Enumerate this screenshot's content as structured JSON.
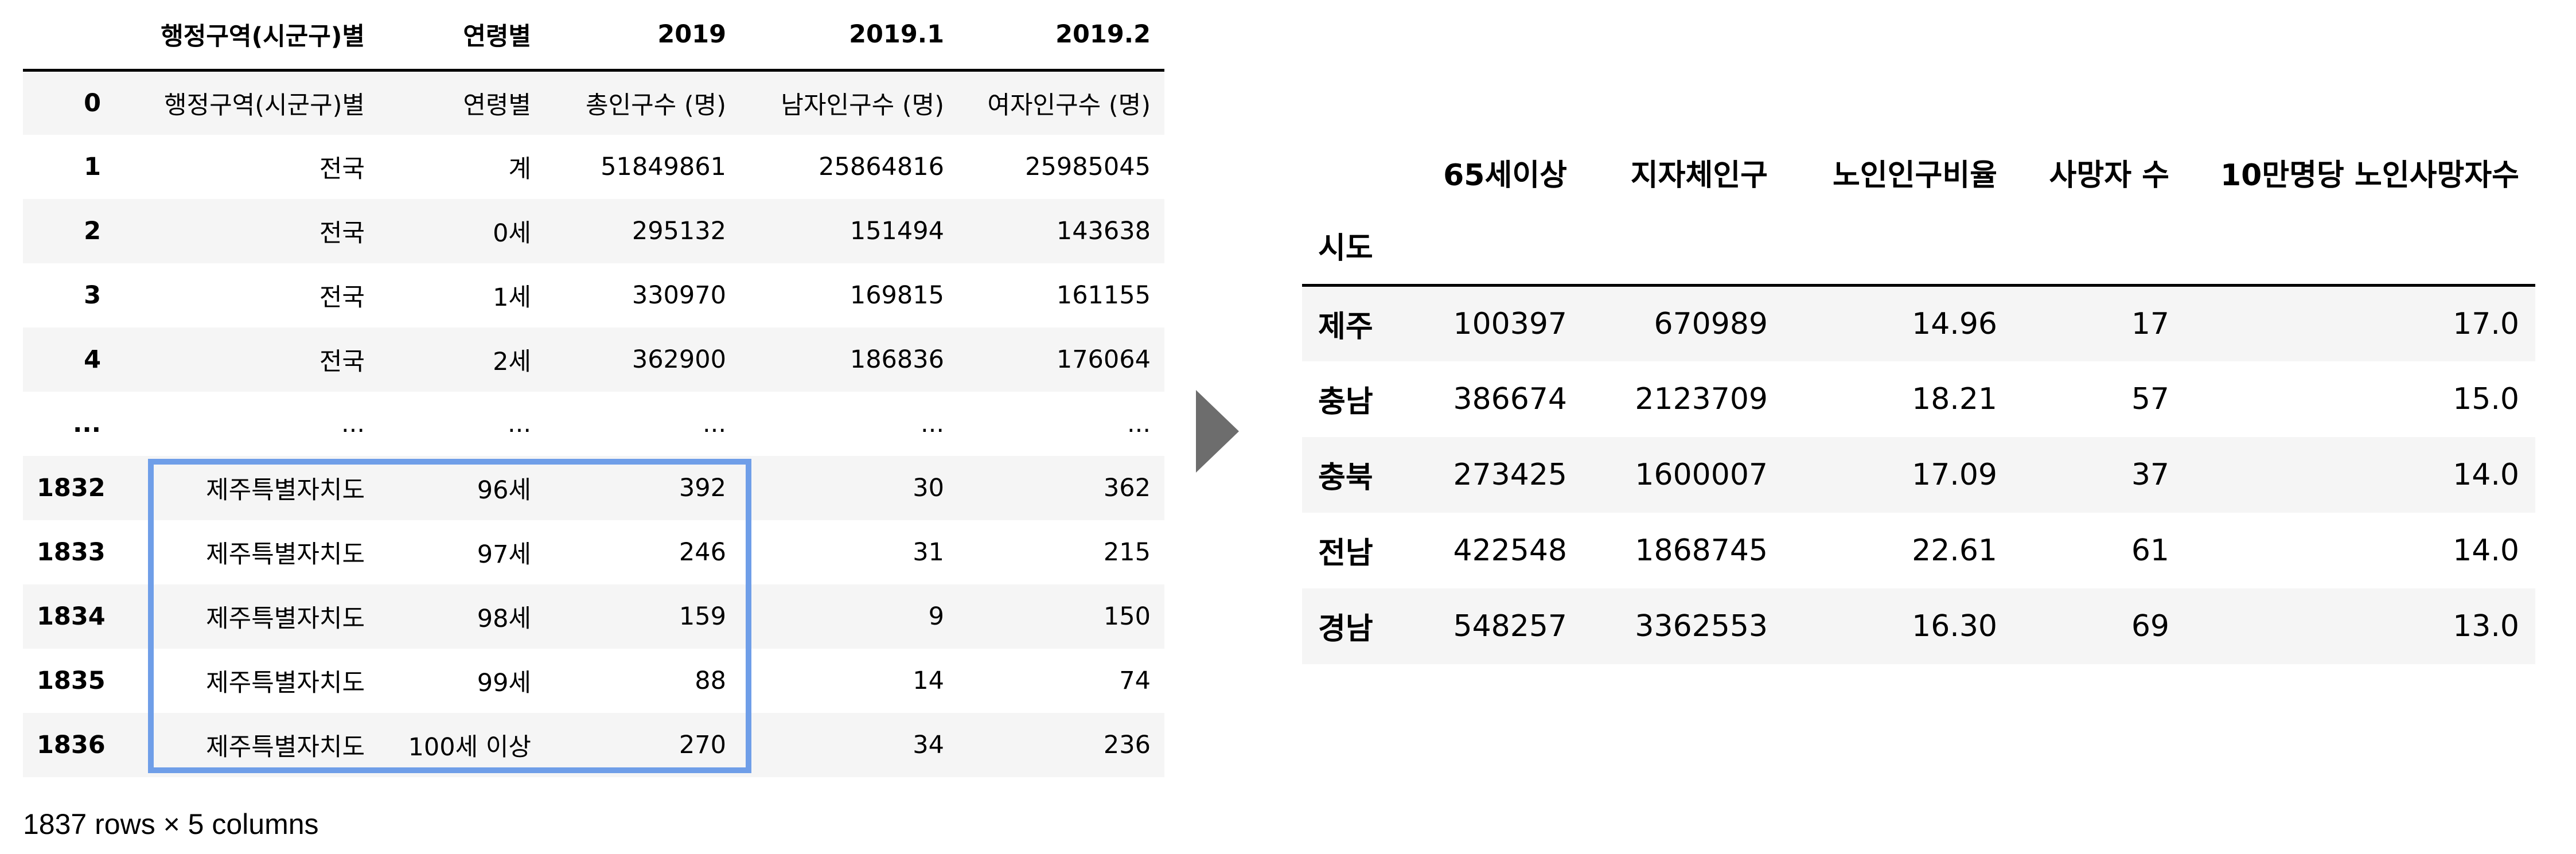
{
  "left_table": {
    "columns": [
      "",
      "행정구역(시군구)별",
      "연령별",
      "2019",
      "2019.1",
      "2019.2"
    ],
    "rows": [
      [
        "0",
        "행정구역(시군구)별",
        "연령별",
        "총인구수 (명)",
        "남자인구수 (명)",
        "여자인구수 (명)"
      ],
      [
        "1",
        "전국",
        "계",
        "51849861",
        "25864816",
        "25985045"
      ],
      [
        "2",
        "전국",
        "0세",
        "295132",
        "151494",
        "143638"
      ],
      [
        "3",
        "전국",
        "1세",
        "330970",
        "169815",
        "161155"
      ],
      [
        "4",
        "전국",
        "2세",
        "362900",
        "186836",
        "176064"
      ],
      [
        "...",
        "...",
        "...",
        "...",
        "...",
        "..."
      ],
      [
        "1832",
        "제주특별자치도",
        "96세",
        "392",
        "30",
        "362"
      ],
      [
        "1833",
        "제주특별자치도",
        "97세",
        "246",
        "31",
        "215"
      ],
      [
        "1834",
        "제주특별자치도",
        "98세",
        "159",
        "9",
        "150"
      ],
      [
        "1835",
        "제주특별자치도",
        "99세",
        "88",
        "14",
        "74"
      ],
      [
        "1836",
        "제주특별자치도",
        "100세 이상",
        "270",
        "34",
        "236"
      ]
    ],
    "row_count_label": "1837 rows × 5 columns"
  },
  "right_table": {
    "columns": [
      "",
      "65세이상",
      "지자체인구",
      "노인인구비율",
      "사망자 수",
      "10만명당 노인사망자수"
    ],
    "index_name": "시도",
    "rows": [
      [
        "제주",
        "100397",
        "670989",
        "14.96",
        "17",
        "17.0"
      ],
      [
        "충남",
        "386674",
        "2123709",
        "18.21",
        "57",
        "15.0"
      ],
      [
        "충북",
        "273425",
        "1600007",
        "17.09",
        "37",
        "14.0"
      ],
      [
        "전남",
        "422548",
        "1868745",
        "22.61",
        "61",
        "14.0"
      ],
      [
        "경남",
        "548257",
        "3362553",
        "16.30",
        "69",
        "13.0"
      ]
    ]
  },
  "colors": {
    "highlight": "#6f9ee8",
    "arrow": "#6d6d6d",
    "stripe": "#f5f5f5"
  }
}
